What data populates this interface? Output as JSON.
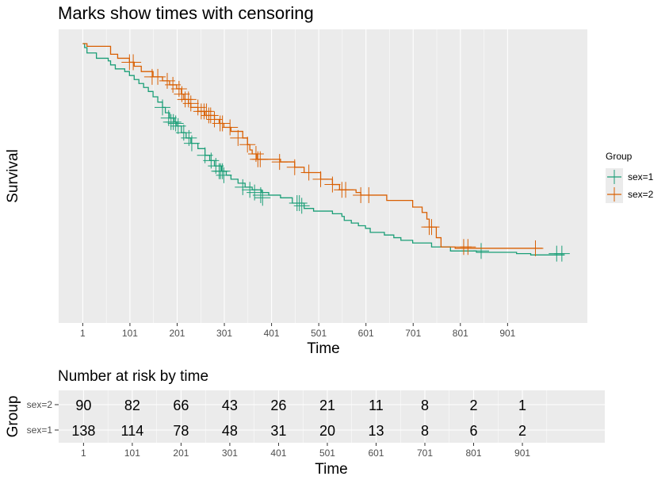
{
  "chart_data": [
    {
      "type": "line",
      "title": "Marks show times with censoring",
      "xlabel": "Time",
      "ylabel": "Survival",
      "xlim": [
        -50,
        1070
      ],
      "ylim": [
        0.0,
        1.0
      ],
      "x_ticks": [
        1,
        101,
        201,
        301,
        401,
        501,
        601,
        701,
        801,
        901
      ],
      "grid": true,
      "legend": {
        "title": "Group",
        "position": "right"
      },
      "series": [
        {
          "name": "sex=1",
          "color": "#1B9E77",
          "steps": [
            [
              1,
              1.0
            ],
            [
              5,
              0.985
            ],
            [
              10,
              0.965
            ],
            [
              30,
              0.945
            ],
            [
              55,
              0.935
            ],
            [
              60,
              0.92
            ],
            [
              70,
              0.905
            ],
            [
              90,
              0.895
            ],
            [
              100,
              0.88
            ],
            [
              110,
              0.865
            ],
            [
              120,
              0.85
            ],
            [
              130,
              0.835
            ],
            [
              140,
              0.82
            ],
            [
              150,
              0.8
            ],
            [
              160,
              0.78
            ],
            [
              170,
              0.76
            ],
            [
              176,
              0.74
            ],
            [
              185,
              0.72
            ],
            [
              195,
              0.705
            ],
            [
              200,
              0.69
            ],
            [
              210,
              0.665
            ],
            [
              220,
              0.645
            ],
            [
              230,
              0.625
            ],
            [
              245,
              0.605
            ],
            [
              260,
              0.58
            ],
            [
              270,
              0.56
            ],
            [
              280,
              0.54
            ],
            [
              295,
              0.52
            ],
            [
              305,
              0.505
            ],
            [
              315,
              0.49
            ],
            [
              330,
              0.475
            ],
            [
              345,
              0.46
            ],
            [
              360,
              0.45
            ],
            [
              380,
              0.44
            ],
            [
              395,
              0.43
            ],
            [
              420,
              0.42
            ],
            [
              445,
              0.4
            ],
            [
              470,
              0.38
            ],
            [
              490,
              0.37
            ],
            [
              530,
              0.36
            ],
            [
              550,
              0.35
            ],
            [
              555,
              0.335
            ],
            [
              570,
              0.325
            ],
            [
              585,
              0.315
            ],
            [
              600,
              0.305
            ],
            [
              610,
              0.29
            ],
            [
              640,
              0.28
            ],
            [
              660,
              0.27
            ],
            [
              675,
              0.26
            ],
            [
              700,
              0.25
            ],
            [
              740,
              0.235
            ],
            [
              780,
              0.22
            ],
            [
              835,
              0.215
            ],
            [
              920,
              0.21
            ],
            [
              950,
              0.205
            ],
            [
              1022,
              0.205
            ]
          ],
          "censored": [
            [
              170,
              0.76
            ],
            [
              183,
              0.72
            ],
            [
              188,
              0.705
            ],
            [
              193,
              0.705
            ],
            [
              198,
              0.7
            ],
            [
              203,
              0.69
            ],
            [
              215,
              0.665
            ],
            [
              226,
              0.645
            ],
            [
              232,
              0.625
            ],
            [
              260,
              0.58
            ],
            [
              273,
              0.56
            ],
            [
              283,
              0.54
            ],
            [
              290,
              0.52
            ],
            [
              293,
              0.52
            ],
            [
              297,
              0.52
            ],
            [
              300,
              0.505
            ],
            [
              340,
              0.46
            ],
            [
              355,
              0.45
            ],
            [
              365,
              0.44
            ],
            [
              378,
              0.43
            ],
            [
              382,
              0.42
            ],
            [
              455,
              0.4
            ],
            [
              460,
              0.4
            ],
            [
              465,
              0.39
            ],
            [
              845,
              0.22
            ],
            [
              1005,
              0.21
            ],
            [
              1016,
              0.21
            ]
          ]
        },
        {
          "name": "sex=2",
          "color": "#D95F02",
          "steps": [
            [
              1,
              1.0
            ],
            [
              10,
              0.99
            ],
            [
              60,
              0.96
            ],
            [
              75,
              0.945
            ],
            [
              100,
              0.93
            ],
            [
              110,
              0.915
            ],
            [
              125,
              0.895
            ],
            [
              150,
              0.875
            ],
            [
              170,
              0.86
            ],
            [
              185,
              0.845
            ],
            [
              200,
              0.83
            ],
            [
              210,
              0.81
            ],
            [
              215,
              0.79
            ],
            [
              225,
              0.775
            ],
            [
              230,
              0.76
            ],
            [
              245,
              0.745
            ],
            [
              260,
              0.73
            ],
            [
              280,
              0.715
            ],
            [
              290,
              0.7
            ],
            [
              300,
              0.685
            ],
            [
              315,
              0.67
            ],
            [
              340,
              0.645
            ],
            [
              350,
              0.62
            ],
            [
              355,
              0.6
            ],
            [
              360,
              0.585
            ],
            [
              370,
              0.565
            ],
            [
              420,
              0.555
            ],
            [
              450,
              0.535
            ],
            [
              470,
              0.515
            ],
            [
              505,
              0.49
            ],
            [
              530,
              0.47
            ],
            [
              545,
              0.45
            ],
            [
              580,
              0.44
            ],
            [
              590,
              0.43
            ],
            [
              645,
              0.41
            ],
            [
              700,
              0.385
            ],
            [
              720,
              0.365
            ],
            [
              730,
              0.34
            ],
            [
              735,
              0.31
            ],
            [
              750,
              0.27
            ],
            [
              760,
              0.235
            ],
            [
              790,
              0.23
            ],
            [
              975,
              0.23
            ]
          ],
          "censored": [
            [
              100,
              0.93
            ],
            [
              108,
              0.93
            ],
            [
              148,
              0.875
            ],
            [
              160,
              0.875
            ],
            [
              180,
              0.86
            ],
            [
              192,
              0.845
            ],
            [
              205,
              0.83
            ],
            [
              211,
              0.81
            ],
            [
              218,
              0.79
            ],
            [
              225,
              0.79
            ],
            [
              230,
              0.775
            ],
            [
              245,
              0.76
            ],
            [
              252,
              0.745
            ],
            [
              258,
              0.745
            ],
            [
              263,
              0.745
            ],
            [
              268,
              0.73
            ],
            [
              272,
              0.73
            ],
            [
              280,
              0.715
            ],
            [
              292,
              0.7
            ],
            [
              297,
              0.7
            ],
            [
              313,
              0.685
            ],
            [
              330,
              0.645
            ],
            [
              350,
              0.62
            ],
            [
              368,
              0.585
            ],
            [
              372,
              0.565
            ],
            [
              377,
              0.565
            ],
            [
              418,
              0.555
            ],
            [
              450,
              0.535
            ],
            [
              480,
              0.515
            ],
            [
              505,
              0.49
            ],
            [
              530,
              0.47
            ],
            [
              550,
              0.45
            ],
            [
              558,
              0.45
            ],
            [
              590,
              0.43
            ],
            [
              607,
              0.43
            ],
            [
              735,
              0.31
            ],
            [
              740,
              0.31
            ],
            [
              808,
              0.235
            ],
            [
              817,
              0.235
            ],
            [
              960,
              0.23
            ]
          ]
        }
      ]
    },
    {
      "type": "table",
      "title": "Number at risk by time",
      "xlabel": "Time",
      "ylabel": "Group",
      "xlim": [
        -50,
        1070
      ],
      "x_ticks": [
        1,
        101,
        201,
        301,
        401,
        501,
        601,
        701,
        801,
        901
      ],
      "rows": [
        {
          "name": "sex=2",
          "color": "#000000",
          "values": [
            90,
            82,
            66,
            43,
            26,
            21,
            11,
            8,
            2,
            1
          ]
        },
        {
          "name": "sex=1",
          "color": "#000000",
          "values": [
            138,
            114,
            78,
            48,
            31,
            20,
            13,
            8,
            6,
            2
          ]
        }
      ]
    }
  ],
  "colors": {
    "panel_bg": "#EBEBEB",
    "grid": "#FFFFFF"
  }
}
